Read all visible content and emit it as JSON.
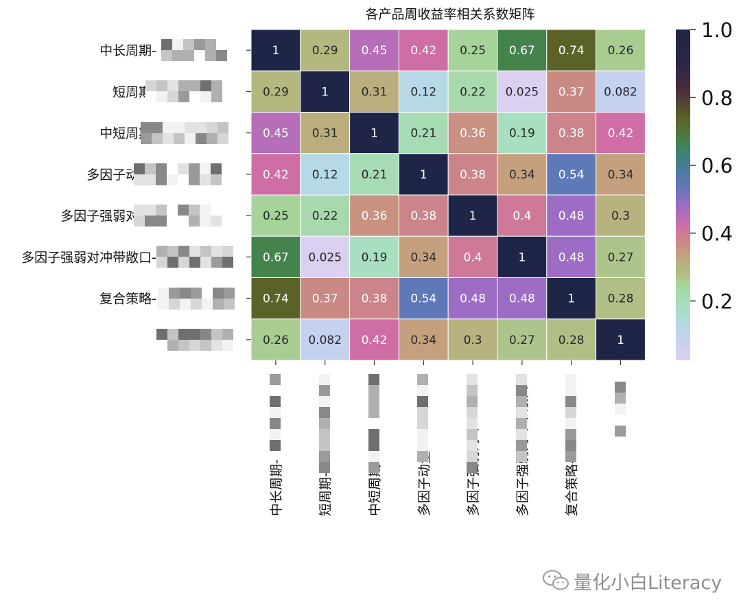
{
  "chart_data": {
    "type": "heatmap",
    "title": "各产品周收益率相关系数矩阵",
    "row_labels": [
      "中长周期",
      "短周期",
      "中短周期",
      "多因子动量",
      "多因子强弱对冲",
      "多因子强弱对冲带敞口",
      "复合策略",
      ""
    ],
    "col_labels": [
      "中长周期",
      "短周期",
      "中短周期",
      "多因子动量",
      "多因子强弱对冲",
      "多因子强弱对冲带敞口",
      "复合策略",
      ""
    ],
    "values": [
      [
        1,
        0.29,
        0.45,
        0.42,
        0.25,
        0.67,
        0.74,
        0.26
      ],
      [
        0.29,
        1,
        0.31,
        0.12,
        0.22,
        0.025,
        0.37,
        0.082
      ],
      [
        0.45,
        0.31,
        1,
        0.21,
        0.36,
        0.19,
        0.38,
        0.42
      ],
      [
        0.42,
        0.12,
        0.21,
        1,
        0.38,
        0.34,
        0.54,
        0.34
      ],
      [
        0.25,
        0.22,
        0.36,
        0.38,
        1,
        0.4,
        0.48,
        0.3
      ],
      [
        0.67,
        0.025,
        0.19,
        0.34,
        0.4,
        1,
        0.48,
        0.27
      ],
      [
        0.74,
        0.37,
        0.38,
        0.54,
        0.48,
        0.48,
        1,
        0.28
      ],
      [
        0.26,
        0.082,
        0.42,
        0.34,
        0.3,
        0.27,
        0.28,
        1
      ]
    ],
    "value_labels": [
      [
        "1",
        "0.29",
        "0.45",
        "0.42",
        "0.25",
        "0.67",
        "0.74",
        "0.26"
      ],
      [
        "0.29",
        "1",
        "0.31",
        "0.12",
        "0.22",
        "0.025",
        "0.37",
        "0.082"
      ],
      [
        "0.45",
        "0.31",
        "1",
        "0.21",
        "0.36",
        "0.19",
        "0.38",
        "0.42"
      ],
      [
        "0.42",
        "0.12",
        "0.21",
        "1",
        "0.38",
        "0.34",
        "0.54",
        "0.34"
      ],
      [
        "0.25",
        "0.22",
        "0.36",
        "0.38",
        "1",
        "0.4",
        "0.48",
        "0.3"
      ],
      [
        "0.67",
        "0.025",
        "0.19",
        "0.34",
        "0.4",
        "1",
        "0.48",
        "0.27"
      ],
      [
        "0.74",
        "0.37",
        "0.38",
        "0.54",
        "0.48",
        "0.48",
        "1",
        "0.28"
      ],
      [
        "0.26",
        "0.082",
        "0.42",
        "0.34",
        "0.3",
        "0.27",
        "0.28",
        "1"
      ]
    ],
    "colormap": "tab20b-like (light lavender → green → tan → pink → purple → blue → dark green → navy)",
    "colorbar": {
      "range": [
        0.025,
        1.0
      ],
      "ticks": [
        0.2,
        0.4,
        0.6,
        0.8,
        1.0
      ],
      "tick_labels": [
        "0.2",
        "0.4",
        "0.6",
        "0.8",
        "1.0"
      ]
    },
    "grid": false
  },
  "watermark": {
    "text": "量化小白Literacy",
    "icon": "wechat-icon"
  },
  "colors": {
    "cell_border": "#ffffff",
    "text_light": "#ffffff",
    "text_dark": "#262626",
    "watermark": "#8e8e8e"
  }
}
